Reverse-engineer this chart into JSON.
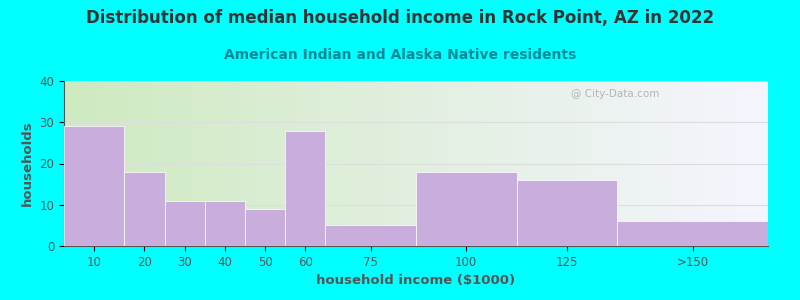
{
  "title": "Distribution of median household income in Rock Point, AZ in 2022",
  "subtitle": "American Indian and Alaska Native residents",
  "xlabel": "household income ($1000)",
  "ylabel": "households",
  "bin_edges": [
    0,
    15,
    25,
    35,
    45,
    55,
    65,
    87.5,
    112.5,
    137.5,
    175
  ],
  "bin_labels": [
    "10",
    "20",
    "30",
    "40",
    "50",
    "60",
    "75",
    "100",
    "125",
    ">150"
  ],
  "values": [
    29,
    18,
    11,
    11,
    9,
    28,
    5,
    18,
    16,
    6
  ],
  "bar_color": "#C9AEDD",
  "bar_edgecolor": "#FFFFFF",
  "background_color": "#00FFFF",
  "plot_bg_left": "#CEEAC0",
  "plot_bg_right": "#F5F5FF",
  "title_color": "#333333",
  "subtitle_color": "#008898",
  "axis_color": "#555555",
  "tick_color": "#555555",
  "grid_color": "#DDDDDD",
  "ylim": [
    0,
    40
  ],
  "yticks": [
    0,
    10,
    20,
    30,
    40
  ],
  "title_fontsize": 12,
  "subtitle_fontsize": 10,
  "label_fontsize": 9.5,
  "tick_fontsize": 8.5,
  "watermark": "City-Data.com"
}
